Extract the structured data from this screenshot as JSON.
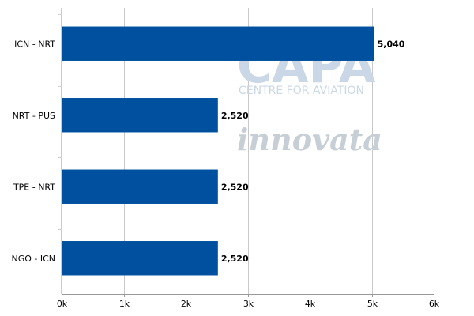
{
  "chart_data": {
    "type": "bar",
    "orientation": "horizontal",
    "categories": [
      "ICN - NRT",
      "NRT - PUS",
      "TPE - NRT",
      "NGO - ICN"
    ],
    "values": [
      5040,
      2520,
      2520,
      2520
    ],
    "value_labels": [
      "5,040",
      "2,520",
      "2,520",
      "2,520"
    ],
    "xlim": [
      0,
      6000
    ],
    "x_ticks": [
      0,
      1000,
      2000,
      3000,
      4000,
      5000,
      6000
    ],
    "x_tick_labels": [
      "0k",
      "1k",
      "2k",
      "3k",
      "4k",
      "5k",
      "6k"
    ],
    "grid": true,
    "legend": "none",
    "bar_color": "#0050a0",
    "grid_color": "#c8c8c8"
  },
  "watermark": {
    "brand": "CAPA",
    "tagline": "CENTRE FOR AVIATION",
    "partner": "innovata"
  }
}
